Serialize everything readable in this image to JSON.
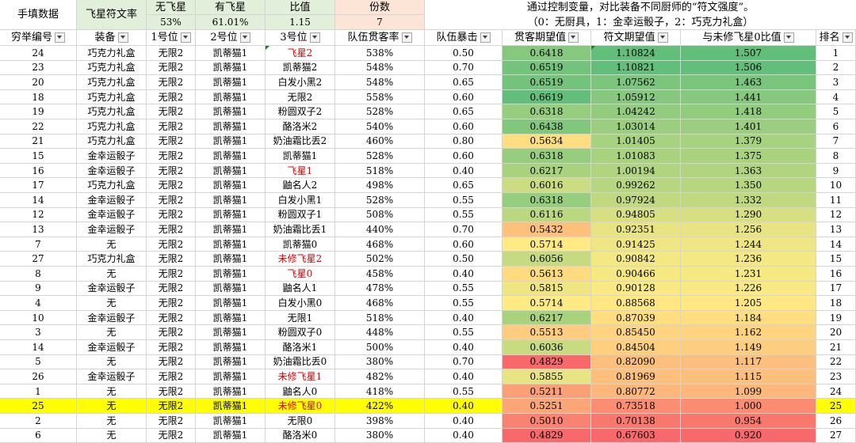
{
  "summary": {
    "label": "手填数据",
    "rate_label": "飞星符文率",
    "cols": [
      {
        "title": "无飞星",
        "value": "53%"
      },
      {
        "title": "有飞星",
        "value": "61.01%"
      },
      {
        "title": "比值",
        "value": "1.15"
      },
      {
        "title": "份数",
        "value": "7"
      }
    ],
    "note_line1": "通过控制变量，对比装备不同厨师的“符文强度”。",
    "note_line2": "（0：无厨具，1：金幸运骰子，2：巧克力礼盒）"
  },
  "columns": [
    "穷举编号",
    "装备",
    "1号位",
    "2号位",
    "3号位",
    "队伍贯客率",
    "队伍暴击",
    "贯客期望值",
    "符文期望值",
    "与未修飞星0比值",
    "排名"
  ],
  "rows": [
    [
      "24",
      "巧克力礼盒",
      "无限2",
      "凯蒂猫1",
      "飞星2",
      "538%",
      "0.50",
      "0.6418",
      "1.10824",
      "1.507",
      "1"
    ],
    [
      "23",
      "巧克力礼盒",
      "无限2",
      "凯蒂猫1",
      "凯蒂猫2",
      "548%",
      "0.70",
      "0.6519",
      "1.10821",
      "1.506",
      "2"
    ],
    [
      "20",
      "巧克力礼盒",
      "无限2",
      "凯蒂猫1",
      "白发小黑2",
      "548%",
      "0.65",
      "0.6519",
      "1.07562",
      "1.463",
      "3"
    ],
    [
      "18",
      "巧克力礼盒",
      "无限2",
      "凯蒂猫1",
      "无限2",
      "558%",
      "0.60",
      "0.6619",
      "1.05912",
      "1.441",
      "4"
    ],
    [
      "19",
      "巧克力礼盒",
      "无限2",
      "凯蒂猫1",
      "粉圆双子2",
      "528%",
      "0.65",
      "0.6318",
      "1.04242",
      "1.418",
      "5"
    ],
    [
      "22",
      "巧克力礼盒",
      "无限2",
      "凯蒂猫1",
      "酪洛米2",
      "540%",
      "0.60",
      "0.6438",
      "1.03014",
      "1.401",
      "6"
    ],
    [
      "21",
      "巧克力礼盒",
      "无限2",
      "凯蒂猫1",
      "奶油霜比丢2",
      "460%",
      "0.80",
      "0.5634",
      "1.01405",
      "1.379",
      "7"
    ],
    [
      "15",
      "金幸运骰子",
      "无限2",
      "凯蒂猫1",
      "凯蒂猫1",
      "528%",
      "0.60",
      "0.6318",
      "1.01083",
      "1.375",
      "8"
    ],
    [
      "16",
      "金幸运骰子",
      "无限2",
      "凯蒂猫1",
      "飞星1",
      "518%",
      "0.40",
      "0.6217",
      "1.00194",
      "1.363",
      "9"
    ],
    [
      "17",
      "巧克力礼盒",
      "无限2",
      "凯蒂猫1",
      "鼬名人2",
      "498%",
      "0.65",
      "0.6016",
      "0.99262",
      "1.350",
      "10"
    ],
    [
      "14",
      "金幸运骰子",
      "无限2",
      "凯蒂猫1",
      "白发小黑1",
      "528%",
      "0.55",
      "0.6318",
      "0.97924",
      "1.332",
      "11"
    ],
    [
      "12",
      "金幸运骰子",
      "无限2",
      "凯蒂猫1",
      "粉圆双子1",
      "508%",
      "0.55",
      "0.6116",
      "0.94805",
      "1.290",
      "12"
    ],
    [
      "13",
      "金幸运骰子",
      "无限2",
      "凯蒂猫1",
      "奶油霜比丢1",
      "440%",
      "0.70",
      "0.5432",
      "0.92351",
      "1.256",
      "13"
    ],
    [
      "7",
      "无",
      "无限2",
      "凯蒂猫1",
      "凯蒂猫0",
      "468%",
      "0.60",
      "0.5714",
      "0.91425",
      "1.244",
      "14"
    ],
    [
      "27",
      "巧克力礼盒",
      "无限2",
      "凯蒂猫1",
      "未修飞星2",
      "502%",
      "0.50",
      "0.6056",
      "0.90842",
      "1.236",
      "15"
    ],
    [
      "8",
      "无",
      "无限2",
      "凯蒂猫1",
      "飞星0",
      "458%",
      "0.40",
      "0.5613",
      "0.90466",
      "1.231",
      "16"
    ],
    [
      "9",
      "金幸运骰子",
      "无限2",
      "凯蒂猫1",
      "鼬名人1",
      "478%",
      "0.55",
      "0.5815",
      "0.90128",
      "1.226",
      "17"
    ],
    [
      "4",
      "无",
      "无限2",
      "凯蒂猫1",
      "白发小黑0",
      "468%",
      "0.55",
      "0.5714",
      "0.88568",
      "1.205",
      "18"
    ],
    [
      "10",
      "金幸运骰子",
      "无限2",
      "凯蒂猫1",
      "无限1",
      "518%",
      "0.40",
      "0.6217",
      "0.87039",
      "1.184",
      "19"
    ],
    [
      "3",
      "无",
      "无限2",
      "凯蒂猫1",
      "粉圆双子0",
      "448%",
      "0.55",
      "0.5513",
      "0.85450",
      "1.162",
      "20"
    ],
    [
      "14",
      "金幸运骰子",
      "无限2",
      "凯蒂猫1",
      "酪洛米1",
      "500%",
      "0.40",
      "0.6036",
      "0.84504",
      "1.149",
      "21"
    ],
    [
      "5",
      "无",
      "无限2",
      "凯蒂猫1",
      "奶油霜比丢0",
      "380%",
      "0.70",
      "0.4829",
      "0.82090",
      "1.117",
      "22"
    ],
    [
      "26",
      "金幸运骰子",
      "无限2",
      "凯蒂猫1",
      "未修飞星1",
      "482%",
      "0.40",
      "0.5855",
      "0.81969",
      "1.115",
      "23"
    ],
    [
      "1",
      "无",
      "无限2",
      "凯蒂猫1",
      "鼬名人0",
      "418%",
      "0.55",
      "0.5211",
      "0.80772",
      "1.099",
      "24"
    ],
    [
      "25",
      "无",
      "无限2",
      "凯蒂猫1",
      "未修飞星0",
      "422%",
      "0.40",
      "0.5251",
      "0.73518",
      "1.000",
      "25"
    ],
    [
      "2",
      "无",
      "无限2",
      "凯蒂猫1",
      "无限0",
      "398%",
      "0.40",
      "0.5010",
      "0.70138",
      "0.954",
      "26"
    ],
    [
      "6",
      "无",
      "无限2",
      "凯蒂猫1",
      "酪洛米0",
      "380%",
      "0.40",
      "0.4829",
      "0.67603",
      "0.920",
      "27"
    ]
  ],
  "red_text_rows": [
    0,
    8,
    14,
    15,
    22,
    24
  ],
  "highlight_row": 24,
  "colors": {
    "highlight": "#ffff00",
    "red_text": "#e00000",
    "green_header": "#e2efda",
    "peach_header": "#fce4d6",
    "scale_low": "#f8696b",
    "scale_mid": "#ffeb84",
    "scale_high": "#63be7b"
  },
  "icons": {
    "filter": "dropdown-arrow"
  }
}
